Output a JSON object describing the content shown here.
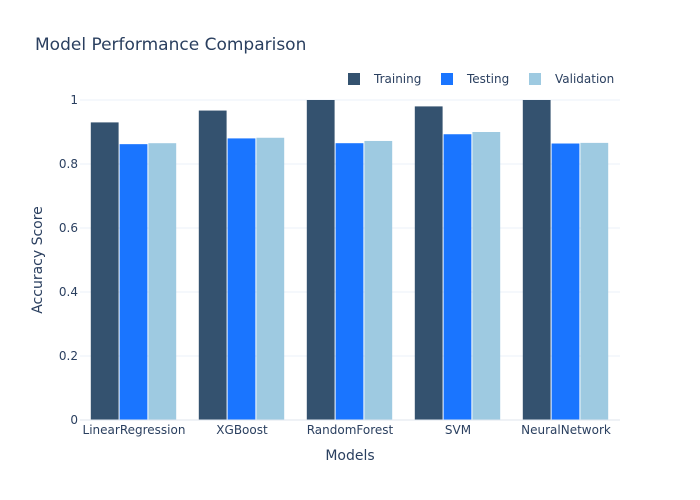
{
  "chart_data": {
    "type": "bar",
    "title": "Model Performance Comparison",
    "xlabel": "Models",
    "ylabel": "Accuracy Score",
    "categories": [
      "LinearRegression",
      "XGBoost",
      "RandomForest",
      "SVM",
      "NeuralNetwork"
    ],
    "series": [
      {
        "name": "Training",
        "color": "#34526f",
        "values": [
          0.93,
          0.967,
          1.0,
          0.98,
          1.0
        ]
      },
      {
        "name": "Testing",
        "color": "#1a75ff",
        "values": [
          0.862,
          0.88,
          0.865,
          0.893,
          0.864
        ]
      },
      {
        "name": "Validation",
        "color": "#9ecae1",
        "values": [
          0.865,
          0.882,
          0.872,
          0.9,
          0.866
        ]
      }
    ],
    "ylim": [
      0,
      1.0
    ],
    "yticks": [
      0,
      0.2,
      0.4,
      0.6,
      0.8,
      1
    ],
    "ytick_labels": [
      "0",
      "0.2",
      "0.4",
      "0.6",
      "0.8",
      "1"
    ],
    "grid": true,
    "legend_position": "top-right"
  }
}
